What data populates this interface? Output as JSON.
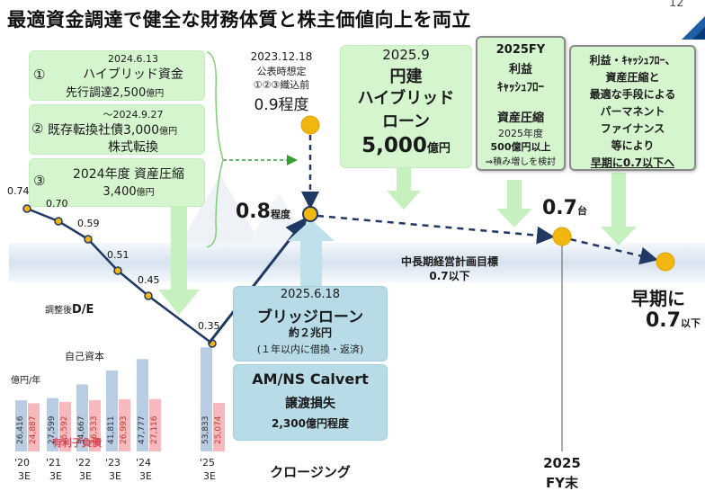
{
  "title": "最適資金調達で健全な財務体質と株主価値向上を両立",
  "page_number": "12",
  "left_boxes": [
    {
      "num": "①",
      "date": "2024.6.13",
      "line1": "ハイブリッド資金",
      "line2a": "先行調達2,500",
      "unit": "億円"
    },
    {
      "num": "②",
      "date": "～2024.9.27",
      "line1a": "既存転換社債3,000",
      "unit": "億円",
      "line2": "株式転換"
    },
    {
      "num": "③",
      "line1": "2024年度 資産圧縮",
      "line2a": "3,400",
      "unit": "億円"
    }
  ],
  "announcement": {
    "date": "2023.12.18",
    "line1": "公表時想定",
    "line2": "①②③織込前",
    "value": "0.9程度"
  },
  "hybrid_loan": {
    "date": "2025.9",
    "line1": "円建",
    "line2": "ハイブリッド",
    "line3": "ローン",
    "amount": "5,000",
    "unit": "億円"
  },
  "fy2025_box": {
    "line1": "2025FY",
    "line2": "利益",
    "line3": "ｷｬｯｼｭﾌﾛｰ",
    "line4": "資産圧縮",
    "line5": "2025年度",
    "line6": "500億円以上",
    "line7": "⇒積み増しを検討"
  },
  "permanent_box": {
    "line1": "利益・ｷｬｯｼｭﾌﾛｰ、",
    "line2": "資産圧縮と",
    "line3": "最適な手段による",
    "line4": "パーマネント",
    "line5": "ファイナンス",
    "line6": "等により",
    "line7": "早期に0.7以下へ"
  },
  "bridge_loan": {
    "date": "2025.6.18",
    "line1": "ブリッジローン",
    "line2": "約２兆円",
    "line3": "(１年以内に借換・返済)"
  },
  "amns_box": {
    "line1": "AM/NS Calvert",
    "line2": "譲渡損失",
    "line3": "2,300億円程度"
  },
  "point_labels": {
    "closing_value": "0.8",
    "closing_suffix": "程度",
    "fy2025_value": "0.7",
    "fy2025_suffix": "台",
    "early_line1": "早期に",
    "early_value": "0.7",
    "early_suffix": "以下"
  },
  "target": {
    "line1": "中長期経営計画目標",
    "line2": "0.7以下"
  },
  "chart_labels": {
    "de_label": "調整後",
    "de_bold": "D/E",
    "unit": "億円/年",
    "equity": "自己資本",
    "debt": "有利子負債"
  },
  "x_labels": {
    "closing": "クロージング",
    "fy2025_line1": "2025",
    "fy2025_line2": "FY末"
  },
  "colors": {
    "equity_bar": "#b8cce4",
    "debt_bar": "#f7b8be",
    "green_box": "#d5f5cf",
    "blue_box": "#b7dce8",
    "point": "#f2b70f",
    "navy": "#1f3864"
  },
  "chart_data": {
    "type": "bar",
    "categories": [
      "'20\n3E",
      "'21\n3E",
      "'22\n3E",
      "'23\n3E",
      "'24\n3E",
      "'25\n3E"
    ],
    "series": [
      {
        "name": "自己資本",
        "values": [
          26416,
          27599,
          34667,
          41811,
          47777,
          53833
        ]
      },
      {
        "name": "有利子負債",
        "values": [
          24887,
          25592,
          26533,
          26993,
          27116,
          25074
        ]
      }
    ],
    "de_ratio": [
      0.74,
      0.7,
      0.59,
      0.51,
      0.45,
      0.35
    ],
    "ylabel": "億円/年"
  }
}
